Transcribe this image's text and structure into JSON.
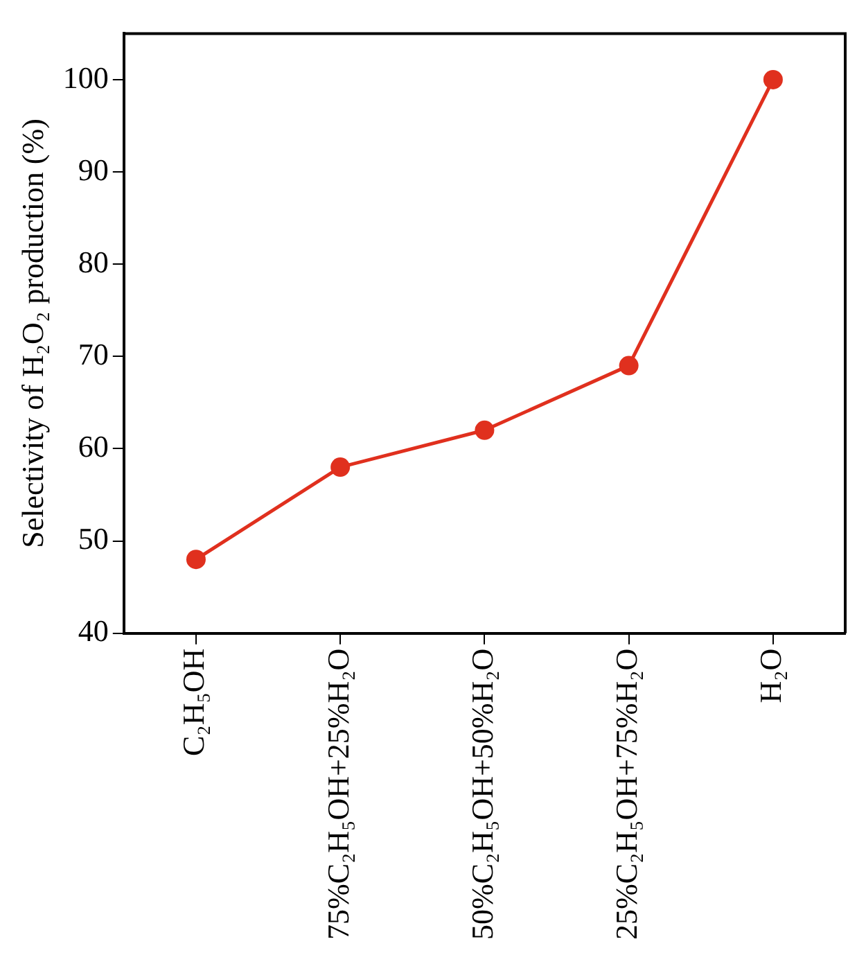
{
  "chart_data": {
    "type": "line",
    "ylabel": "Selectivity of H₂O₂ production (%)",
    "categories": [
      "C₂H₅OH",
      "75%C₂H₅OH+25%H₂O",
      "50%C₂H₅OH+50%H₂O",
      "25%C₂H₅OH+75%H₂O",
      "H₂O"
    ],
    "series": [
      {
        "color": "#e0301e",
        "values": [
          48,
          58,
          62,
          69,
          100
        ]
      }
    ],
    "ylim": [
      40,
      105
    ],
    "yticks": [
      40,
      50,
      60,
      70,
      80,
      90,
      100
    ],
    "grid": false,
    "legend": false,
    "marker": "circle",
    "line_style": "solid"
  }
}
